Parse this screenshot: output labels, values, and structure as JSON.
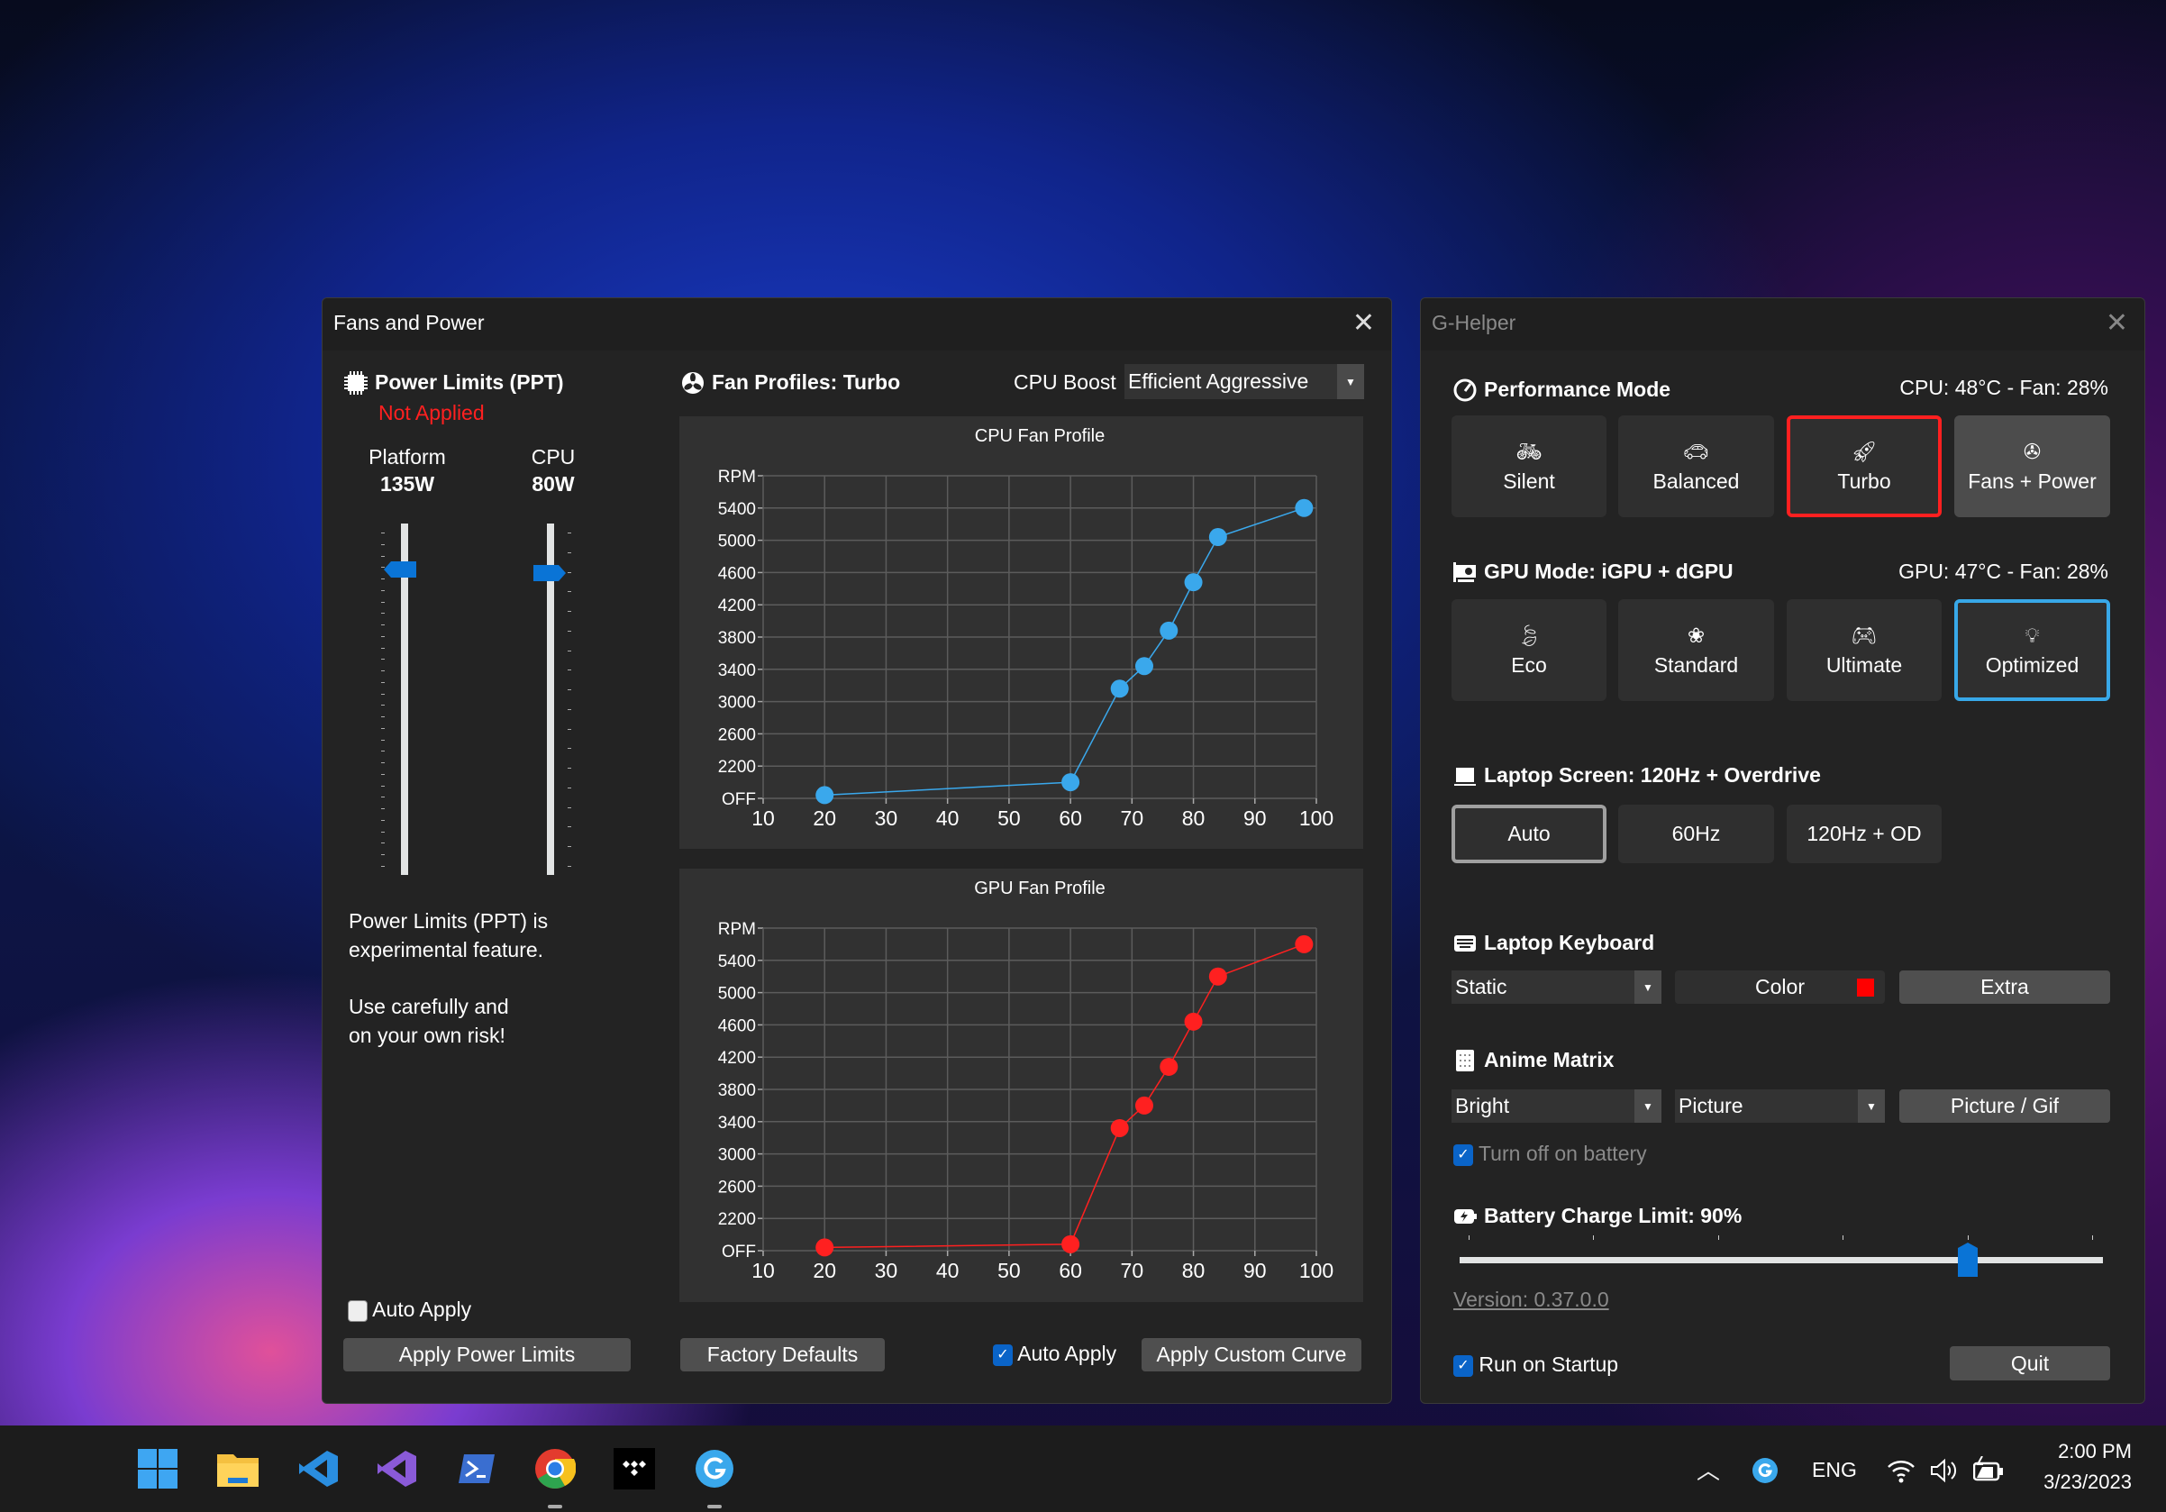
{
  "fans_window": {
    "title": "Fans and Power",
    "power": {
      "heading": "Power Limits (PPT)",
      "status": "Not Applied",
      "platform": {
        "label": "Platform",
        "value": "135W",
        "level": 0.87
      },
      "cpu": {
        "label": "CPU",
        "value": "80W",
        "level": 0.86
      },
      "note_1": "Power Limits (PPT) is",
      "note_2": "experimental feature.",
      "note_3": "Use carefully and",
      "note_4": "on your own risk!",
      "auto_apply": {
        "label": "Auto Apply",
        "checked": false
      },
      "apply_button": "Apply Power Limits"
    },
    "fans": {
      "heading": "Fan Profiles: Turbo",
      "boost_label": "CPU Boost",
      "boost_value": "Efficient Aggressive",
      "factory_defaults": "Factory Defaults",
      "auto_apply": {
        "label": "Auto Apply",
        "checked": true
      },
      "apply_curve": "Apply Custom Curve"
    }
  },
  "chart_data": [
    {
      "type": "line",
      "title": "CPU Fan Profile",
      "color": "#3aa8ec",
      "x_ticks": [
        "10",
        "20",
        "30",
        "40",
        "50",
        "60",
        "70",
        "80",
        "90",
        "100"
      ],
      "xlim": [
        10,
        100
      ],
      "y_ticks": [
        "OFF",
        "2200",
        "2600",
        "3000",
        "3400",
        "3800",
        "4200",
        "4600",
        "5000",
        "5400",
        "RPM"
      ],
      "grid": true,
      "x": [
        20,
        60,
        68,
        72,
        76,
        80,
        84,
        98
      ],
      "y": [
        1840,
        2000,
        3160,
        3440,
        3880,
        4480,
        5040,
        5400
      ]
    },
    {
      "type": "line",
      "title": "GPU Fan Profile",
      "color": "#ff2020",
      "x_ticks": [
        "10",
        "20",
        "30",
        "40",
        "50",
        "60",
        "70",
        "80",
        "90",
        "100"
      ],
      "xlim": [
        10,
        100
      ],
      "y_ticks": [
        "OFF",
        "2200",
        "2600",
        "3000",
        "3400",
        "3800",
        "4200",
        "4600",
        "5000",
        "5400",
        "RPM"
      ],
      "grid": true,
      "x": [
        20,
        60,
        68,
        72,
        76,
        80,
        84,
        98
      ],
      "y": [
        1840,
        1880,
        3320,
        3600,
        4080,
        4640,
        5200,
        5600
      ]
    }
  ],
  "ghelper": {
    "title": "G-Helper",
    "performance": {
      "heading": "Performance Mode",
      "status": "CPU: 48°C -  Fan: 28%",
      "modes": [
        {
          "label": "Silent",
          "icon": "bicycle-icon"
        },
        {
          "label": "Balanced",
          "icon": "car-icon"
        },
        {
          "label": "Turbo",
          "icon": "rocket-icon",
          "selected": true
        },
        {
          "label": "Fans + Power",
          "icon": "fan-icon"
        }
      ],
      "selected_color": "#ff2020"
    },
    "gpu": {
      "heading": "GPU Mode: iGPU + dGPU",
      "status": "GPU: 47°C -  Fan: 28%",
      "modes": [
        {
          "label": "Eco",
          "icon": "leaf-icon"
        },
        {
          "label": "Standard",
          "icon": "flower-icon"
        },
        {
          "label": "Ultimate",
          "icon": "gamepad-icon"
        },
        {
          "label": "Optimized",
          "icon": "bulb-gear-icon",
          "selected": true
        }
      ],
      "selected_color": "#38a8e8"
    },
    "screen": {
      "heading": "Laptop Screen: 120Hz + Overdrive",
      "options": [
        "Auto",
        "60Hz",
        "120Hz + OD"
      ],
      "selected": "Auto"
    },
    "keyboard": {
      "heading": "Laptop Keyboard",
      "mode": "Static",
      "color_label": "Color",
      "color": "#ff0000",
      "extra": "Extra"
    },
    "anime": {
      "heading": "Anime Matrix",
      "brightness": "Bright",
      "mode": "Picture",
      "picture_button": "Picture / Gif",
      "battery_off": {
        "label": "Turn off on battery",
        "checked": true
      }
    },
    "battery": {
      "heading": "Battery Charge Limit: 90%",
      "level": 0.79
    },
    "version": "Version: 0.37.0.0",
    "startup": {
      "label": "Run on Startup",
      "checked": true
    },
    "quit": "Quit"
  },
  "taskbar": {
    "apps": [
      "windows-start-icon",
      "file-explorer-icon",
      "vscode-icon",
      "visual-studio-icon",
      "terminal-icon",
      "chrome-icon",
      "tidal-icon",
      "ghelper-icon"
    ],
    "language": "ENG",
    "time": "2:00 PM",
    "date": "3/23/2023"
  }
}
